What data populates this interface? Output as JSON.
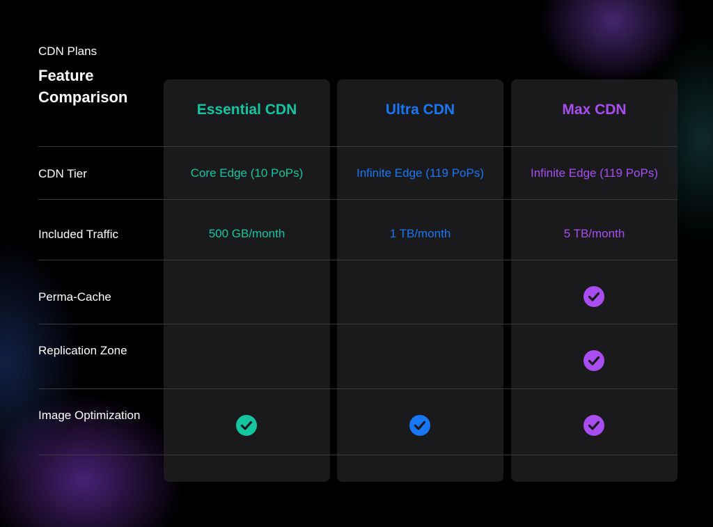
{
  "header": {
    "eyebrow": "CDN Plans",
    "title": "Feature Comparison"
  },
  "colors": {
    "essential": "#14c59f",
    "ultra": "#1977f3",
    "max": "#a84ef0"
  },
  "plans": [
    {
      "name": "Essential CDN",
      "color": "#14c59f"
    },
    {
      "name": "Ultra CDN",
      "color": "#1977f3"
    },
    {
      "name": "Max CDN",
      "color": "#a84ef0"
    }
  ],
  "rows": [
    {
      "label": "CDN Tier",
      "cells": [
        "Core Edge (10 PoPs)",
        "Infinite Edge (119 PoPs)",
        "Infinite Edge (119 PoPs)"
      ]
    },
    {
      "label": "Included Traffic",
      "cells": [
        "500 GB/month",
        "1 TB/month",
        "5 TB/month"
      ]
    },
    {
      "label": "Perma-Cache",
      "checks": [
        false,
        false,
        true
      ]
    },
    {
      "label": "Replication Zone",
      "checks": [
        false,
        false,
        true
      ]
    },
    {
      "label": "Image Optimization",
      "checks": [
        true,
        true,
        true
      ]
    }
  ],
  "icons": {
    "check": "check-circle-icon"
  }
}
